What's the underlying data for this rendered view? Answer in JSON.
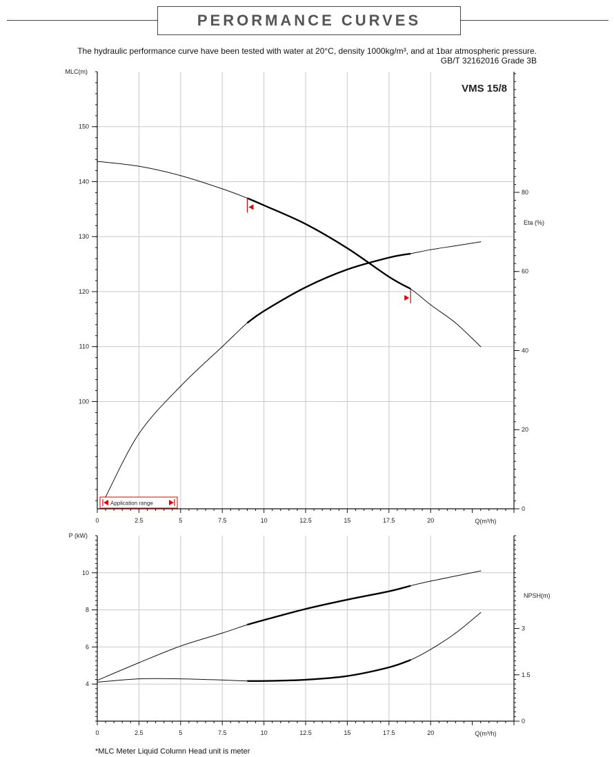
{
  "header": {
    "title": "PERORMANCE CURVES",
    "description": "The hydraulic performance curve have been tested with water at 20°C, density 1000kg/m³, and at 1bar atmospheric pressure.",
    "standard": "GB/T 32162016 Grade 3B"
  },
  "footnote": "*MLC Meter Liquid Column Head unit is meter",
  "chart_data": [
    {
      "type": "line",
      "model": "VMS 15/8",
      "xlabel": "Q(m³/h)",
      "ylabel": "MLC(m)",
      "y2label": "Eta (%)",
      "xlim": [
        0,
        25
      ],
      "ylim": [
        80.5,
        160
      ],
      "y2lim": [
        0,
        110.5
      ],
      "x_ticks": [
        0,
        2.5,
        5,
        7.5,
        10,
        12.5,
        15,
        17.5,
        20
      ],
      "x_tick_labels": [
        "0",
        "2.5",
        "5",
        "7.5",
        "10",
        "12.5",
        "15",
        "17.5",
        "20"
      ],
      "y_ticks": [
        100,
        110,
        120,
        130,
        140,
        150
      ],
      "y2_ticks": [
        0,
        20,
        40,
        60,
        80
      ],
      "grid": true,
      "application_range": {
        "label": "Application range",
        "min_q": 9,
        "max_q": 18.8
      },
      "series": [
        {
          "axis": "y",
          "x": [
            0,
            2.5,
            5,
            7.5,
            9,
            10,
            12.5,
            15,
            17.5,
            18.8,
            20,
            21.5,
            23
          ],
          "values": [
            143.7,
            142.8,
            141.1,
            138.7,
            137.0,
            135.7,
            132.3,
            127.9,
            122.7,
            120.5,
            117.6,
            114.3,
            110.0
          ]
        },
        {
          "axis": "y2",
          "x": [
            0.5,
            2.5,
            5,
            7.5,
            9,
            10,
            12.5,
            15,
            17.5,
            18.8,
            20,
            21.5,
            23
          ],
          "values": [
            3,
            19,
            31,
            41,
            47,
            50,
            56,
            60.5,
            63.5,
            64.5,
            65.5,
            66.5,
            67.5
          ]
        }
      ]
    },
    {
      "type": "line",
      "xlabel": "Q(m³/h)",
      "ylabel": "P (kW)",
      "y2label": "NPSH(m)",
      "xlim": [
        0,
        25
      ],
      "ylim": [
        2,
        12
      ],
      "y2lim": [
        0,
        6
      ],
      "x_ticks": [
        0,
        2.5,
        5,
        7.5,
        10,
        12.5,
        15,
        17.5,
        20
      ],
      "x_tick_labels": [
        "0",
        "2.5",
        "5",
        "7.5",
        "10",
        "12.5",
        "15",
        "17.5",
        "20"
      ],
      "y_ticks": [
        4,
        6,
        8,
        10
      ],
      "y2_ticks": [
        0,
        1.5,
        3
      ],
      "grid": true,
      "series": [
        {
          "axis": "y",
          "x": [
            0,
            2.5,
            5,
            7.5,
            9,
            10,
            12.5,
            15,
            17.5,
            18.8,
            20,
            23
          ],
          "values": [
            4.2,
            5.15,
            6.05,
            6.75,
            7.2,
            7.45,
            8.05,
            8.55,
            9.0,
            9.3,
            9.55,
            10.1
          ]
        },
        {
          "axis": "y2",
          "x": [
            0,
            2.5,
            5,
            7.5,
            9,
            10,
            12.5,
            15,
            17.5,
            18.8,
            20,
            21.5,
            23
          ],
          "values": [
            1.26,
            1.37,
            1.37,
            1.33,
            1.3,
            1.3,
            1.34,
            1.46,
            1.74,
            1.98,
            2.32,
            2.85,
            3.51
          ]
        }
      ]
    }
  ]
}
